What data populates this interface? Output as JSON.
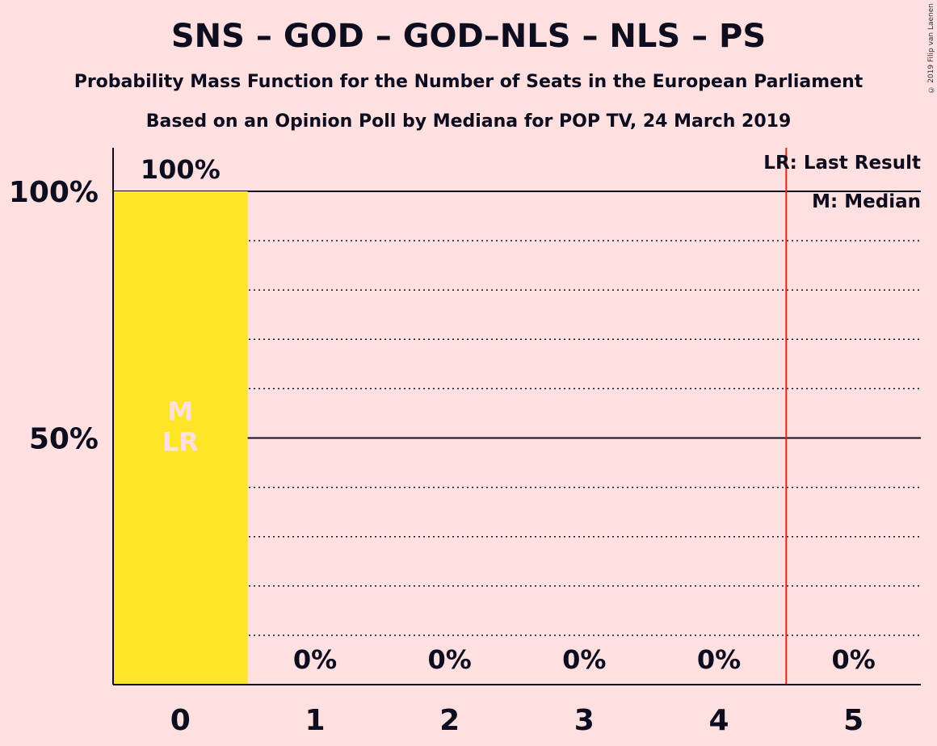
{
  "chart_data": {
    "type": "bar",
    "title": "SNS – GOD – GOD–NLS – NLS – PS",
    "subtitle": "Probability Mass Function for the Number of Seats in the European Parliament",
    "subtitle2": "Based on an Opinion Poll by Mediana for POP TV, 24 March 2019",
    "categories": [
      "0",
      "1",
      "2",
      "3",
      "4",
      "5"
    ],
    "values": [
      100,
      0,
      0,
      0,
      0,
      0
    ],
    "value_labels": [
      "100%",
      "0%",
      "0%",
      "0%",
      "0%",
      "0%"
    ],
    "ylim": [
      0,
      100
    ],
    "yticks": [
      50,
      100
    ],
    "ytick_labels": [
      "50%",
      "100%"
    ],
    "bar_color": "#FFE527",
    "last_result": 4.5,
    "last_result_color": "#E8231A",
    "median_seats": 0,
    "bar_markers": [
      "M",
      "LR"
    ],
    "legend": [
      "LR: Last Result",
      "M: Median"
    ]
  },
  "copyright": "© 2019 Filip van Laenen"
}
